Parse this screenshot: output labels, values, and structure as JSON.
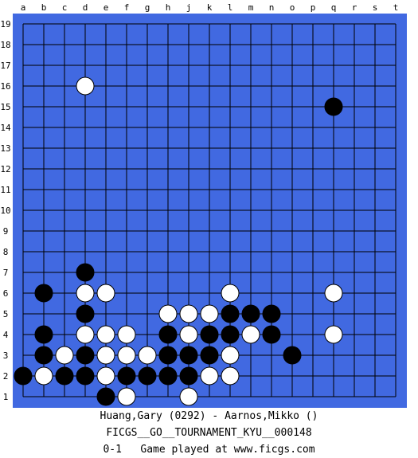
{
  "board": {
    "size": 19,
    "columns": [
      "a",
      "b",
      "c",
      "d",
      "e",
      "f",
      "g",
      "h",
      "j",
      "k",
      "l",
      "m",
      "n",
      "o",
      "p",
      "q",
      "r",
      "s",
      "t"
    ],
    "rows": [
      "19",
      "18",
      "17",
      "16",
      "15",
      "14",
      "13",
      "12",
      "11",
      "10",
      "9",
      "8",
      "7",
      "6",
      "5",
      "4",
      "3",
      "2",
      "1"
    ],
    "colors": {
      "frame": "#4169e1",
      "grid": "#000000",
      "black_stone": "#000000",
      "white_stone": "#ffffff"
    },
    "stones": [
      {
        "color": "white",
        "point": "d16"
      },
      {
        "color": "black",
        "point": "q15"
      },
      {
        "color": "black",
        "point": "d7"
      },
      {
        "color": "black",
        "point": "b6"
      },
      {
        "color": "white",
        "point": "d6"
      },
      {
        "color": "white",
        "point": "e6"
      },
      {
        "color": "white",
        "point": "l6"
      },
      {
        "color": "white",
        "point": "q6"
      },
      {
        "color": "black",
        "point": "d5"
      },
      {
        "color": "white",
        "point": "h5"
      },
      {
        "color": "white",
        "point": "j5"
      },
      {
        "color": "white",
        "point": "k5"
      },
      {
        "color": "black",
        "point": "l5"
      },
      {
        "color": "black",
        "point": "m5"
      },
      {
        "color": "black",
        "point": "n5"
      },
      {
        "color": "black",
        "point": "b4"
      },
      {
        "color": "white",
        "point": "d4"
      },
      {
        "color": "white",
        "point": "e4"
      },
      {
        "color": "white",
        "point": "f4"
      },
      {
        "color": "black",
        "point": "h4"
      },
      {
        "color": "white",
        "point": "j4"
      },
      {
        "color": "black",
        "point": "k4"
      },
      {
        "color": "black",
        "point": "l4"
      },
      {
        "color": "white",
        "point": "m4"
      },
      {
        "color": "black",
        "point": "n4"
      },
      {
        "color": "white",
        "point": "q4"
      },
      {
        "color": "black",
        "point": "b3"
      },
      {
        "color": "white",
        "point": "c3"
      },
      {
        "color": "black",
        "point": "d3"
      },
      {
        "color": "white",
        "point": "e3"
      },
      {
        "color": "white",
        "point": "f3"
      },
      {
        "color": "white",
        "point": "g3"
      },
      {
        "color": "black",
        "point": "h3"
      },
      {
        "color": "black",
        "point": "j3"
      },
      {
        "color": "black",
        "point": "k3"
      },
      {
        "color": "white",
        "point": "l3"
      },
      {
        "color": "black",
        "point": "o3"
      },
      {
        "color": "black",
        "point": "a2"
      },
      {
        "color": "white",
        "point": "b2"
      },
      {
        "color": "black",
        "point": "c2"
      },
      {
        "color": "black",
        "point": "d2"
      },
      {
        "color": "white",
        "point": "e2"
      },
      {
        "color": "black",
        "point": "f2"
      },
      {
        "color": "black",
        "point": "g2"
      },
      {
        "color": "black",
        "point": "h2"
      },
      {
        "color": "black",
        "point": "j2"
      },
      {
        "color": "white",
        "point": "k2"
      },
      {
        "color": "white",
        "point": "l2"
      },
      {
        "color": "black",
        "point": "e1"
      },
      {
        "color": "white",
        "point": "f1"
      },
      {
        "color": "white",
        "point": "j1"
      }
    ]
  },
  "caption": {
    "players": "Huang,Gary (0292) - Aarnos,Mikko ()",
    "tournament": "FICGS__GO__TOURNAMENT_KYU__000148",
    "result": "0-1",
    "note": "Game played at www.ficgs.com"
  }
}
